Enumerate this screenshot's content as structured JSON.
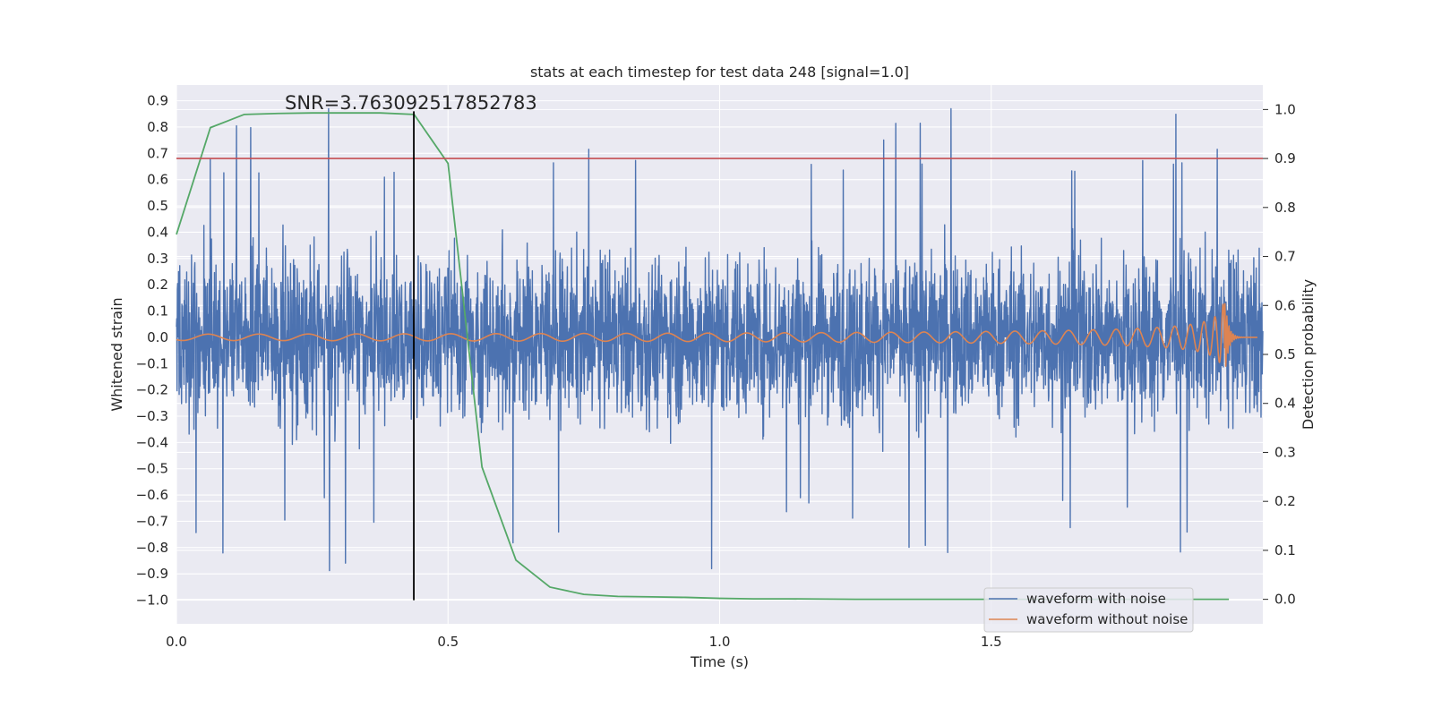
{
  "chart_data": {
    "type": "line",
    "title": "stats at each timestep for test data 248 [signal=1.0]",
    "xlabel": "Time (s)",
    "ylabel": "Whitened strain",
    "y2label": "Detection probability",
    "xlim": [
      0.0,
      2.0
    ],
    "ylim": [
      -1.09,
      0.96
    ],
    "y2lim": [
      -0.05,
      1.05
    ],
    "x_ticks": [
      "0.0",
      "0.5",
      "1.0",
      "1.5"
    ],
    "y_ticks": [
      "0.9",
      "0.8",
      "0.7",
      "0.6",
      "0.5",
      "0.4",
      "0.3",
      "0.2",
      "0.1",
      "0.0",
      "-0.1",
      "-0.2",
      "-0.3",
      "-0.4",
      "-0.5",
      "-0.6",
      "-0.7",
      "-0.8",
      "-0.9",
      "-1.0"
    ],
    "y2_ticks": [
      "1.0",
      "0.9",
      "0.8",
      "0.7",
      "0.6",
      "0.5",
      "0.4",
      "0.3",
      "0.2",
      "0.1",
      "0.0"
    ],
    "grid": true,
    "legend_placement": "lower-right",
    "annotation": "SNR=3.763092517852783",
    "threshold": {
      "y2": 0.9,
      "color": "#c44e52"
    },
    "marker_line": {
      "x": 0.437,
      "y_from": -1.0,
      "y_to": 0.86,
      "color": "#000000"
    },
    "colors": {
      "noise": "#4c72b0",
      "signal": "#dd8452",
      "probability": "#55a868",
      "plot_background": "#eaeaf2",
      "grid": "#ffffff"
    },
    "series": [
      {
        "name": "waveform with noise",
        "axis": "left",
        "kind": "noise",
        "x_range": [
          0.0,
          2.0
        ],
        "amplitude_range": [
          -1.0,
          0.87
        ]
      },
      {
        "name": "waveform without noise",
        "axis": "left",
        "kind": "chirp",
        "x_range": [
          0.0,
          1.99
        ],
        "merger_time": 1.93,
        "peak_amplitude": 0.15
      },
      {
        "axis": "right",
        "kind": "probability",
        "x": [
          0.0,
          0.0625,
          0.125,
          0.1875,
          0.25,
          0.3125,
          0.375,
          0.4375,
          0.5,
          0.5625,
          0.625,
          0.6875,
          0.75,
          0.8125,
          0.875,
          0.9375,
          1.0,
          1.0625,
          1.125,
          1.25,
          1.375,
          1.5,
          1.625,
          1.75,
          1.875,
          1.9375
        ],
        "y": [
          0.745,
          0.963,
          0.99,
          0.992,
          0.993,
          0.993,
          0.993,
          0.99,
          0.89,
          0.27,
          0.08,
          0.025,
          0.01,
          0.006,
          0.005,
          0.004,
          0.002,
          0.001,
          0.001,
          0.0,
          0.0,
          0.0,
          0.0,
          0.0,
          0.0,
          0.0
        ]
      }
    ]
  }
}
